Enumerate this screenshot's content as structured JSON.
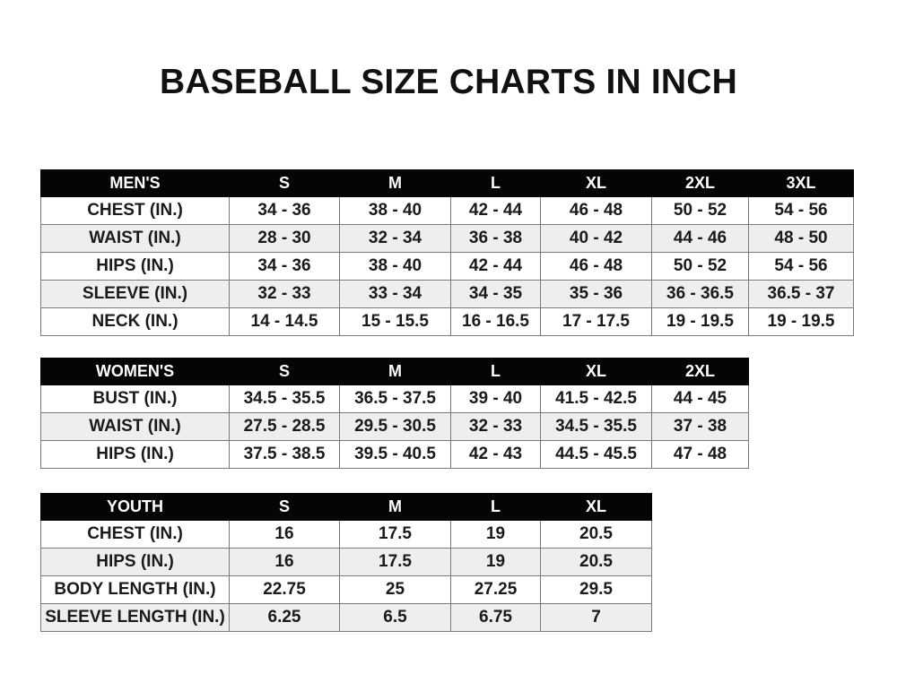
{
  "title": "BASEBALL SIZE CHARTS IN INCH",
  "tables": {
    "men": {
      "header": [
        "MEN'S",
        "S",
        "M",
        "L",
        "XL",
        "2XL",
        "3XL"
      ],
      "rows": [
        [
          "CHEST (IN.)",
          "34 - 36",
          "38 - 40",
          "42 - 44",
          "46 - 48",
          "50 - 52",
          "54 - 56"
        ],
        [
          "WAIST (IN.)",
          "28 - 30",
          "32 - 34",
          "36 - 38",
          "40 - 42",
          "44 - 46",
          "48 - 50"
        ],
        [
          "HIPS (IN.)",
          "34 - 36",
          "38 - 40",
          "42 - 44",
          "46 - 48",
          "50 - 52",
          "54 - 56"
        ],
        [
          "SLEEVE (IN.)",
          "32 - 33",
          "33 - 34",
          "34 - 35",
          "35 - 36",
          "36 - 36.5",
          "36.5 - 37"
        ],
        [
          "NECK (IN.)",
          "14 - 14.5",
          "15 - 15.5",
          "16 - 16.5",
          "17 - 17.5",
          "19 - 19.5",
          "19 - 19.5"
        ]
      ]
    },
    "women": {
      "header": [
        "WOMEN'S",
        "S",
        "M",
        "L",
        "XL",
        "2XL"
      ],
      "rows": [
        [
          "BUST (IN.)",
          "34.5 - 35.5",
          "36.5 - 37.5",
          "39 - 40",
          "41.5 - 42.5",
          "44 - 45"
        ],
        [
          "WAIST (IN.)",
          "27.5 - 28.5",
          "29.5 - 30.5",
          "32 - 33",
          "34.5 - 35.5",
          "37 - 38"
        ],
        [
          "HIPS (IN.)",
          "37.5 - 38.5",
          "39.5 - 40.5",
          "42 - 43",
          "44.5 - 45.5",
          "47 - 48"
        ]
      ]
    },
    "youth": {
      "header": [
        "YOUTH",
        "S",
        "M",
        "L",
        "XL"
      ],
      "rows": [
        [
          "CHEST (IN.)",
          "16",
          "17.5",
          "19",
          "20.5"
        ],
        [
          "HIPS (IN.)",
          "16",
          "17.5",
          "19",
          "20.5"
        ],
        [
          "BODY LENGTH (IN.)",
          "22.75",
          "25",
          "27.25",
          "29.5"
        ],
        [
          "SLEEVE LENGTH (IN.)",
          "6.25",
          "6.5",
          "6.75",
          "7"
        ]
      ]
    }
  }
}
